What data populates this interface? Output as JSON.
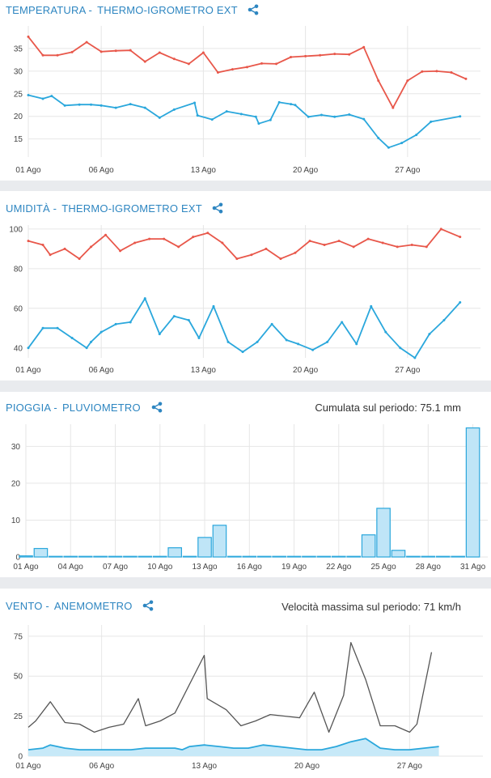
{
  "panels": [
    {
      "title": "TEMPERATURA -",
      "sensor": "THERMO-IGROMETRO EXT",
      "summary": ""
    },
    {
      "title": "UMIDITÀ -",
      "sensor": "THERMO-IGROMETRO EXT",
      "summary": ""
    },
    {
      "title": "PIOGGIA -",
      "sensor": "PLUVIOMETRO",
      "summary": "Cumulata sul periodo: 75.1 mm"
    },
    {
      "title": "VENTO -",
      "sensor": "ANEMOMETRO",
      "summary": "Velocità massima sul periodo: 71 km/h"
    }
  ],
  "colors": {
    "title": "#2e86c1",
    "red_series": "#e8574a",
    "blue_series": "#2aa7dc",
    "bar_fill": "#bfe5f7",
    "bar_stroke": "#2aa7dc",
    "gust_line": "#555555",
    "wind_fill": "#c7e9f8",
    "grid": "#e6e6e6"
  },
  "chart_data": [
    {
      "type": "line",
      "xlim": [
        1,
        32
      ],
      "ylim": [
        11,
        40
      ],
      "y_ticks": [
        15,
        20,
        25,
        30,
        35
      ],
      "x_ticks": [
        {
          "x": 1,
          "label": "01 Ago"
        },
        {
          "x": 6,
          "label": "06 Ago"
        },
        {
          "x": 13,
          "label": "13 Ago"
        },
        {
          "x": 20,
          "label": "20 Ago"
        },
        {
          "x": 27,
          "label": "27 Ago"
        }
      ],
      "series": [
        {
          "color_key": "red_series",
          "points": [
            [
              1,
              37.6
            ],
            [
              2,
              33.5
            ],
            [
              3,
              33.5
            ],
            [
              4,
              34.2
            ],
            [
              5,
              36.4
            ],
            [
              6,
              34.3
            ],
            [
              7,
              34.5
            ],
            [
              8,
              34.6
            ],
            [
              9,
              32.1
            ],
            [
              10,
              34.1
            ],
            [
              11,
              32.7
            ],
            [
              12,
              31.6
            ],
            [
              13,
              34.1
            ],
            [
              14,
              29.7
            ],
            [
              15,
              30.4
            ],
            [
              16,
              30.9
            ],
            [
              17,
              31.7
            ],
            [
              18,
              31.6
            ],
            [
              19,
              33.1
            ],
            [
              20,
              33.3
            ],
            [
              21,
              33.5
            ],
            [
              22,
              33.8
            ],
            [
              23,
              33.7
            ],
            [
              24,
              35.3
            ],
            [
              25,
              27.9
            ],
            [
              26,
              21.9
            ],
            [
              27,
              27.9
            ],
            [
              28,
              29.9
            ],
            [
              29,
              30.0
            ],
            [
              30,
              29.7
            ],
            [
              31,
              28.3
            ]
          ]
        },
        {
          "color_key": "blue_series",
          "points": [
            [
              1,
              24.7
            ],
            [
              2,
              23.9
            ],
            [
              2.6,
              24.5
            ],
            [
              3.5,
              22.4
            ],
            [
              4.5,
              22.6
            ],
            [
              5.3,
              22.6
            ],
            [
              6,
              22.4
            ],
            [
              7,
              21.9
            ],
            [
              8,
              22.7
            ],
            [
              9,
              21.9
            ],
            [
              10,
              19.7
            ],
            [
              11,
              21.5
            ],
            [
              12.4,
              23.0
            ],
            [
              12.6,
              20.2
            ],
            [
              13.6,
              19.3
            ],
            [
              14.6,
              21.1
            ],
            [
              15.6,
              20.5
            ],
            [
              16.6,
              19.9
            ],
            [
              16.8,
              18.4
            ],
            [
              17.6,
              19.2
            ],
            [
              18.2,
              23.1
            ],
            [
              19,
              22.7
            ],
            [
              19.3,
              22.5
            ],
            [
              20.2,
              19.9
            ],
            [
              21.1,
              20.3
            ],
            [
              22,
              19.9
            ],
            [
              23,
              20.4
            ],
            [
              24,
              19.4
            ],
            [
              25,
              15.2
            ],
            [
              25.7,
              13.1
            ],
            [
              26.6,
              14.1
            ],
            [
              27.6,
              15.9
            ],
            [
              28.6,
              18.8
            ],
            [
              30.6,
              20.0
            ]
          ]
        }
      ]
    },
    {
      "type": "line",
      "xlim": [
        1,
        32
      ],
      "ylim": [
        35,
        102
      ],
      "y_ticks": [
        40,
        60,
        80,
        100
      ],
      "x_ticks": [
        {
          "x": 1,
          "label": "01 Ago"
        },
        {
          "x": 6,
          "label": "06 Ago"
        },
        {
          "x": 13,
          "label": "13 Ago"
        },
        {
          "x": 20,
          "label": "20 Ago"
        },
        {
          "x": 27,
          "label": "27 Ago"
        }
      ],
      "series": [
        {
          "color_key": "red_series",
          "points": [
            [
              1,
              94
            ],
            [
              2,
              92
            ],
            [
              2.5,
              87
            ],
            [
              3.5,
              90
            ],
            [
              4.5,
              85
            ],
            [
              5.3,
              91
            ],
            [
              6.3,
              97
            ],
            [
              7.3,
              89
            ],
            [
              8.3,
              93
            ],
            [
              9.3,
              95
            ],
            [
              10.3,
              95
            ],
            [
              11.3,
              91
            ],
            [
              12.3,
              96
            ],
            [
              13.3,
              98
            ],
            [
              14.3,
              93
            ],
            [
              15.3,
              85
            ],
            [
              16.3,
              87
            ],
            [
              17.3,
              90
            ],
            [
              18.3,
              85
            ],
            [
              19.3,
              88
            ],
            [
              20.3,
              94
            ],
            [
              21.3,
              92
            ],
            [
              22.3,
              94
            ],
            [
              23.3,
              91
            ],
            [
              24.3,
              95
            ],
            [
              25.3,
              93
            ],
            [
              26.3,
              91
            ],
            [
              27.3,
              92
            ],
            [
              28.3,
              91
            ],
            [
              29.3,
              100
            ],
            [
              30.6,
              96
            ]
          ]
        },
        {
          "color_key": "blue_series",
          "points": [
            [
              1,
              40
            ],
            [
              2,
              50
            ],
            [
              3,
              50
            ],
            [
              4,
              45
            ],
            [
              5,
              40
            ],
            [
              5.3,
              43
            ],
            [
              6,
              48
            ],
            [
              7,
              52
            ],
            [
              8,
              53
            ],
            [
              9,
              65
            ],
            [
              10,
              47
            ],
            [
              11,
              56
            ],
            [
              12,
              54
            ],
            [
              12.7,
              45
            ],
            [
              13.7,
              61
            ],
            [
              14.7,
              43
            ],
            [
              15.7,
              38
            ],
            [
              16.7,
              43
            ],
            [
              17.7,
              52
            ],
            [
              18.7,
              44
            ],
            [
              19.5,
              42
            ],
            [
              20.5,
              39
            ],
            [
              21.5,
              43
            ],
            [
              22.5,
              53
            ],
            [
              23.5,
              42
            ],
            [
              24.5,
              61
            ],
            [
              25.5,
              48
            ],
            [
              26.5,
              40
            ],
            [
              27.5,
              35
            ],
            [
              28.5,
              47
            ],
            [
              29.5,
              54
            ],
            [
              30.6,
              63
            ]
          ]
        }
      ]
    },
    {
      "type": "bar",
      "xlim": [
        1,
        32
      ],
      "ylim": [
        0,
        36
      ],
      "y_ticks": [
        0,
        10,
        20,
        30
      ],
      "x_ticks": [
        {
          "x": 1,
          "label": "01 Ago"
        },
        {
          "x": 4,
          "label": "04 Ago"
        },
        {
          "x": 7,
          "label": "07 Ago"
        },
        {
          "x": 10,
          "label": "10 Ago"
        },
        {
          "x": 13,
          "label": "13 Ago"
        },
        {
          "x": 16,
          "label": "16 Ago"
        },
        {
          "x": 19,
          "label": "19 Ago"
        },
        {
          "x": 22,
          "label": "22 Ago"
        },
        {
          "x": 25,
          "label": "25 Ago"
        },
        {
          "x": 28,
          "label": "28 Ago"
        },
        {
          "x": 31,
          "label": "31 Ago"
        }
      ],
      "x": [
        1,
        2,
        3,
        4,
        5,
        6,
        7,
        8,
        9,
        10,
        11,
        12,
        13,
        14,
        15,
        16,
        17,
        18,
        19,
        20,
        21,
        22,
        23,
        24,
        25,
        26,
        27,
        28,
        29,
        30,
        31
      ],
      "values": [
        0.3,
        2.3,
        0,
        0,
        0,
        0,
        0,
        0,
        0,
        0,
        2.5,
        0,
        5.3,
        8.6,
        0,
        0,
        0,
        0,
        0,
        0,
        0,
        0,
        0,
        6.0,
        13.2,
        1.8,
        0,
        0,
        0,
        0,
        35.0
      ]
    },
    {
      "type": "line",
      "xlim": [
        1,
        32
      ],
      "ylim": [
        0,
        82
      ],
      "y_ticks": [
        0,
        25,
        50,
        75
      ],
      "x_ticks": [
        {
          "x": 1,
          "label": "01 Ago"
        },
        {
          "x": 6,
          "label": "06 Ago"
        },
        {
          "x": 13,
          "label": "13 Ago"
        },
        {
          "x": 20,
          "label": "20 Ago"
        },
        {
          "x": 27,
          "label": "27 Ago"
        }
      ],
      "series": [
        {
          "color_key": "gust_line",
          "points": [
            [
              1,
              18
            ],
            [
              1.5,
              22
            ],
            [
              2.5,
              34
            ],
            [
              3.5,
              21
            ],
            [
              4.5,
              20
            ],
            [
              5.5,
              15
            ],
            [
              6.5,
              18
            ],
            [
              7.5,
              20
            ],
            [
              8.5,
              36
            ],
            [
              9,
              19
            ],
            [
              10,
              22
            ],
            [
              11,
              27
            ],
            [
              13,
              63
            ],
            [
              13.2,
              36
            ],
            [
              14.5,
              29
            ],
            [
              15.5,
              19
            ],
            [
              16.5,
              22
            ],
            [
              17.5,
              26
            ],
            [
              18.5,
              25
            ],
            [
              19.5,
              24
            ],
            [
              20.5,
              40
            ],
            [
              21.5,
              15
            ],
            [
              22.5,
              38
            ],
            [
              23,
              71
            ],
            [
              24,
              48
            ],
            [
              25,
              19
            ],
            [
              26,
              19
            ],
            [
              27,
              15
            ],
            [
              27.5,
              20
            ],
            [
              28.5,
              65
            ]
          ]
        },
        {
          "color_key": "blue_series",
          "area": true,
          "points": [
            [
              1,
              4
            ],
            [
              2,
              5
            ],
            [
              2.5,
              7
            ],
            [
              3.5,
              5
            ],
            [
              4.5,
              4
            ],
            [
              6,
              4
            ],
            [
              7,
              4
            ],
            [
              8,
              4
            ],
            [
              9,
              5
            ],
            [
              10,
              5
            ],
            [
              11,
              5
            ],
            [
              11.5,
              4
            ],
            [
              12,
              6
            ],
            [
              13,
              7
            ],
            [
              14,
              6
            ],
            [
              15,
              5
            ],
            [
              16,
              5
            ],
            [
              17,
              7
            ],
            [
              18,
              6
            ],
            [
              19,
              5
            ],
            [
              20,
              4
            ],
            [
              21,
              4
            ],
            [
              22,
              6
            ],
            [
              23,
              9
            ],
            [
              24,
              11
            ],
            [
              25,
              5
            ],
            [
              26,
              4
            ],
            [
              27,
              4
            ],
            [
              28,
              5
            ],
            [
              29,
              6
            ]
          ]
        }
      ]
    }
  ]
}
